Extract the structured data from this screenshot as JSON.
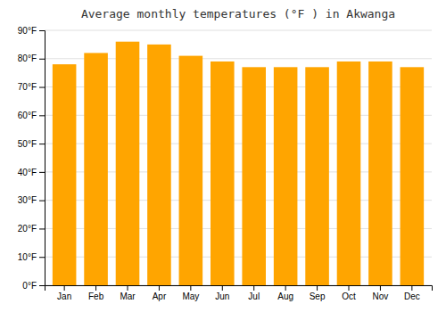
{
  "chart_data": {
    "type": "bar",
    "title": "Average monthly temperatures (°F ) in Akwanga",
    "categories": [
      "Jan",
      "Feb",
      "Mar",
      "Apr",
      "May",
      "Jun",
      "Jul",
      "Aug",
      "Sep",
      "Oct",
      "Nov",
      "Dec"
    ],
    "values": [
      78,
      82,
      86,
      85,
      81,
      79,
      77,
      77,
      77,
      79,
      79,
      77
    ],
    "color": "#FFA500",
    "ylim": [
      0,
      90
    ],
    "yticks": [
      {
        "value": 0,
        "label": "0°F"
      },
      {
        "value": 10,
        "label": "10°F"
      },
      {
        "value": 20,
        "label": "20°F"
      },
      {
        "value": 30,
        "label": "30°F"
      },
      {
        "value": 40,
        "label": "40°F"
      },
      {
        "value": 50,
        "label": "50°F"
      },
      {
        "value": 60,
        "label": "60°F"
      },
      {
        "value": 70,
        "label": "70°F"
      },
      {
        "value": 80,
        "label": "80°F"
      },
      {
        "value": 90,
        "label": "90°F"
      }
    ],
    "grid": true
  }
}
